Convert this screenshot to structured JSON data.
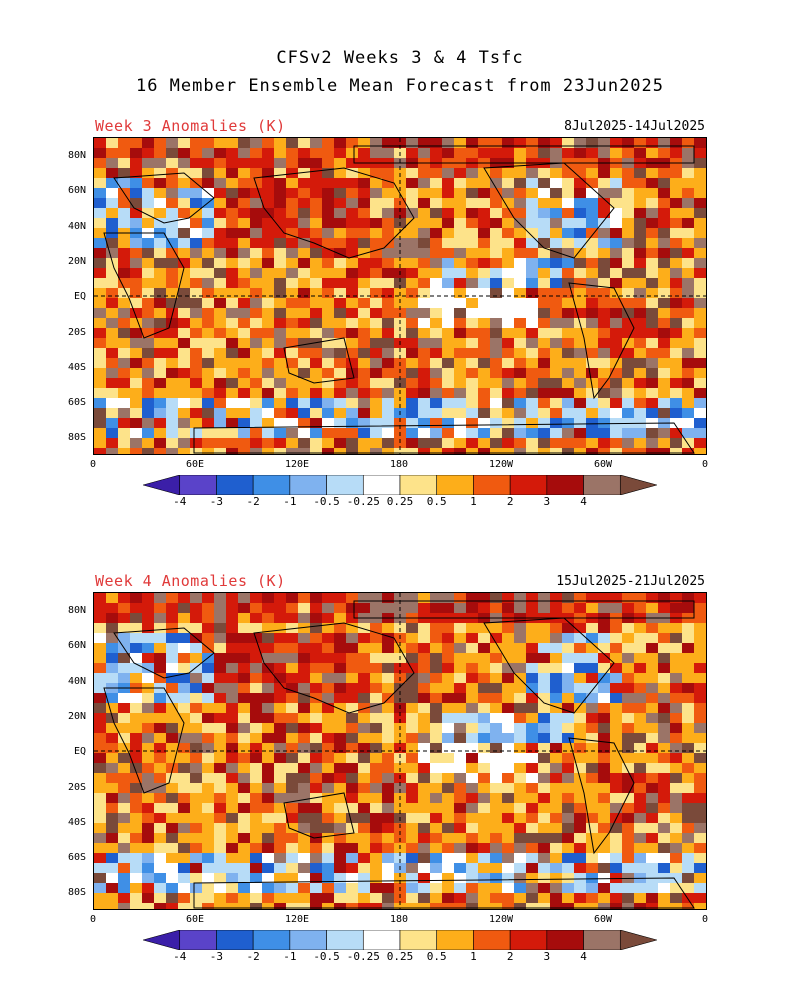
{
  "header": {
    "title_line1": "CFSv2 Weeks 3 & 4 Tsfc",
    "title_line2": "16 Member Ensemble Mean Forecast from 23Jun2025"
  },
  "panels": [
    {
      "title": "Week 3 Anomalies (K)",
      "date_range": "8Jul2025-14Jul2025"
    },
    {
      "title": "Week 4 Anomalies (K)",
      "date_range": "15Jul2025-21Jul2025"
    }
  ],
  "axes": {
    "lat_labels": [
      "80N",
      "60N",
      "40N",
      "20N",
      "EQ",
      "20S",
      "40S",
      "60S",
      "80S"
    ],
    "lon_labels": [
      "0",
      "60E",
      "120E",
      "180",
      "120W",
      "60W",
      "0"
    ]
  },
  "colorbar": {
    "labels": [
      "-4",
      "-3",
      "-2",
      "-1",
      "-0.5",
      "-0.25",
      "0.25",
      "0.5",
      "1",
      "2",
      "3",
      "4"
    ],
    "colors": [
      "#3b1fa8",
      "#5a43c9",
      "#1f5fcf",
      "#3f8fe6",
      "#7fb2ef",
      "#b7dcf7",
      "#ffffff",
      "#fde38a",
      "#fdae1a",
      "#f05a10",
      "#d41a0a",
      "#a60c0c",
      "#9b7467",
      "#7a4a3a"
    ]
  }
}
